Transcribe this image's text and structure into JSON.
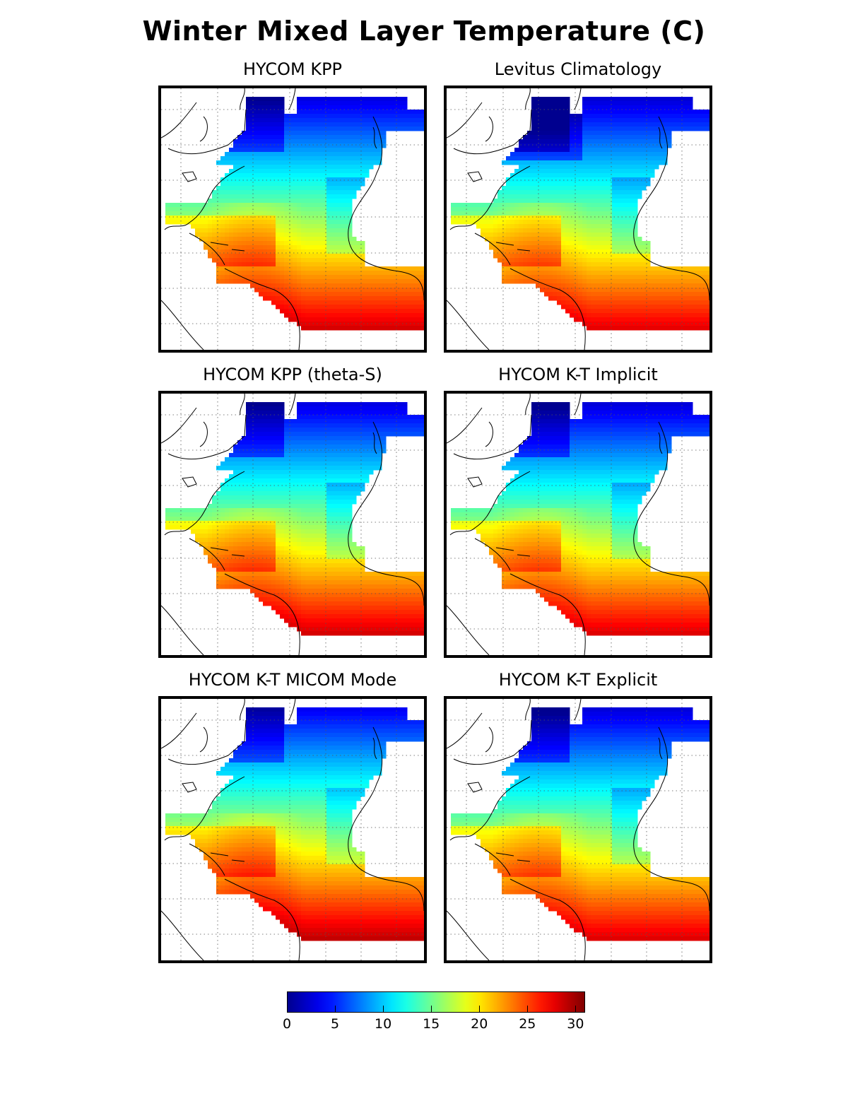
{
  "title": "Winter Mixed Layer Temperature (C)",
  "panels": [
    {
      "id": "p1",
      "title": "HYCOM KPP",
      "variant": "kpp"
    },
    {
      "id": "p2",
      "title": "Levitus Climatology",
      "variant": "levitus"
    },
    {
      "id": "p3",
      "title": "HYCOM KPP (theta-S)",
      "variant": "kpp"
    },
    {
      "id": "p4",
      "title": "HYCOM K-T Implicit",
      "variant": "kt"
    },
    {
      "id": "p5",
      "title": "HYCOM K-T MICOM Mode",
      "variant": "micom"
    },
    {
      "id": "p6",
      "title": "HYCOM K-T Explicit",
      "variant": "kt"
    }
  ],
  "colorbar": {
    "min": 0,
    "max": 31,
    "ticks": [
      "0",
      "5",
      "10",
      "15",
      "20",
      "25",
      "30"
    ],
    "tick_values": [
      0,
      5,
      10,
      15,
      20,
      25,
      30
    ],
    "colormap": "jet",
    "colors": [
      "#00008f",
      "#0000ff",
      "#00ffff",
      "#ffff00",
      "#ff0000",
      "#800000"
    ]
  },
  "map": {
    "region": "North Atlantic Ocean",
    "graticule": "dotted"
  }
}
